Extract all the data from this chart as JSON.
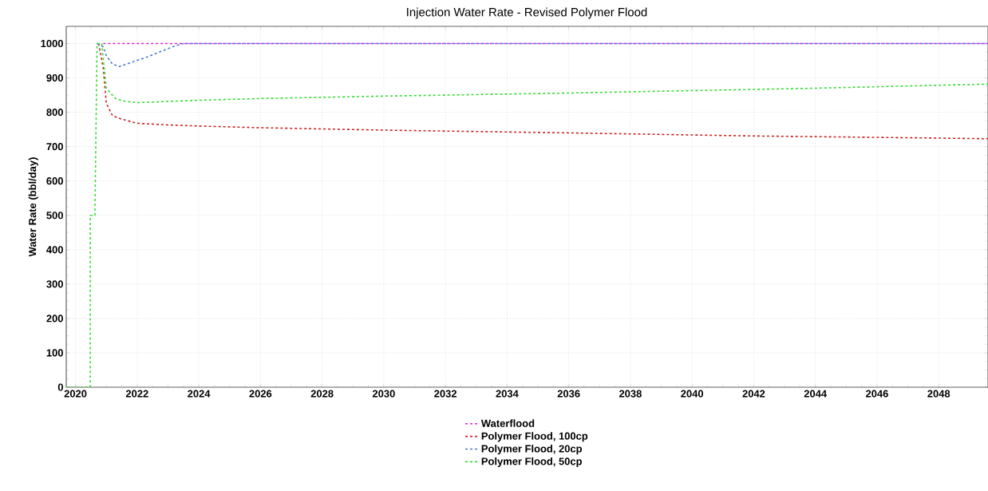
{
  "chart_data": {
    "type": "line",
    "title": "Injection Water Rate - Revised Polymer Flood",
    "ylabel": "Water Rate (bbl/day)",
    "xlim": [
      2019.7,
      2049.6
    ],
    "ylim": [
      0,
      1050
    ],
    "xticks": [
      2020,
      2022,
      2024,
      2026,
      2028,
      2030,
      2032,
      2034,
      2036,
      2038,
      2040,
      2042,
      2044,
      2046,
      2048
    ],
    "yticks": [
      0,
      100,
      200,
      300,
      400,
      500,
      600,
      700,
      800,
      900,
      1000
    ],
    "grid": true,
    "legend": "bottom",
    "marker": "none",
    "line_style": "dashed",
    "series": [
      {
        "name": "Waterflood",
        "color": "#e020e0",
        "x": [
          2020.9,
          2049.6
        ],
        "values": [
          1000,
          1000
        ]
      },
      {
        "name": "Polymer Flood, 100cp",
        "color": "#cc2222",
        "x": [
          2020.75,
          2020.9,
          2021.0,
          2021.2,
          2021.5,
          2022,
          2023,
          2024,
          2026,
          2030,
          2036,
          2042,
          2046,
          2049.6
        ],
        "values": [
          1000,
          930,
          826,
          790,
          780,
          768,
          763,
          760,
          755,
          748,
          740,
          731,
          727,
          723
        ]
      },
      {
        "name": "Polymer Flood, 20cp",
        "color": "#4a7ad0",
        "x": [
          2020.7,
          2020.9,
          2021.0,
          2021.2,
          2021.43,
          2021.8,
          2022.3,
          2022.8,
          2023.2,
          2023.5,
          2049.6
        ],
        "values": [
          1000,
          990,
          965,
          940,
          933,
          945,
          960,
          978,
          992,
          1000,
          1000
        ]
      },
      {
        "name": "Polymer Flood, 50cp",
        "color": "#33dd33",
        "x": [
          2019.7,
          2020.48,
          2020.48,
          2020.63,
          2020.7,
          2020.85,
          2021.0,
          2021.3,
          2021.6,
          2022,
          2024,
          2026,
          2030,
          2036,
          2040,
          2044,
          2049.6
        ],
        "values": [
          0,
          0,
          500,
          500,
          1000,
          1000,
          870,
          840,
          832,
          828,
          835,
          840,
          847,
          856,
          863,
          870,
          882
        ]
      }
    ]
  }
}
